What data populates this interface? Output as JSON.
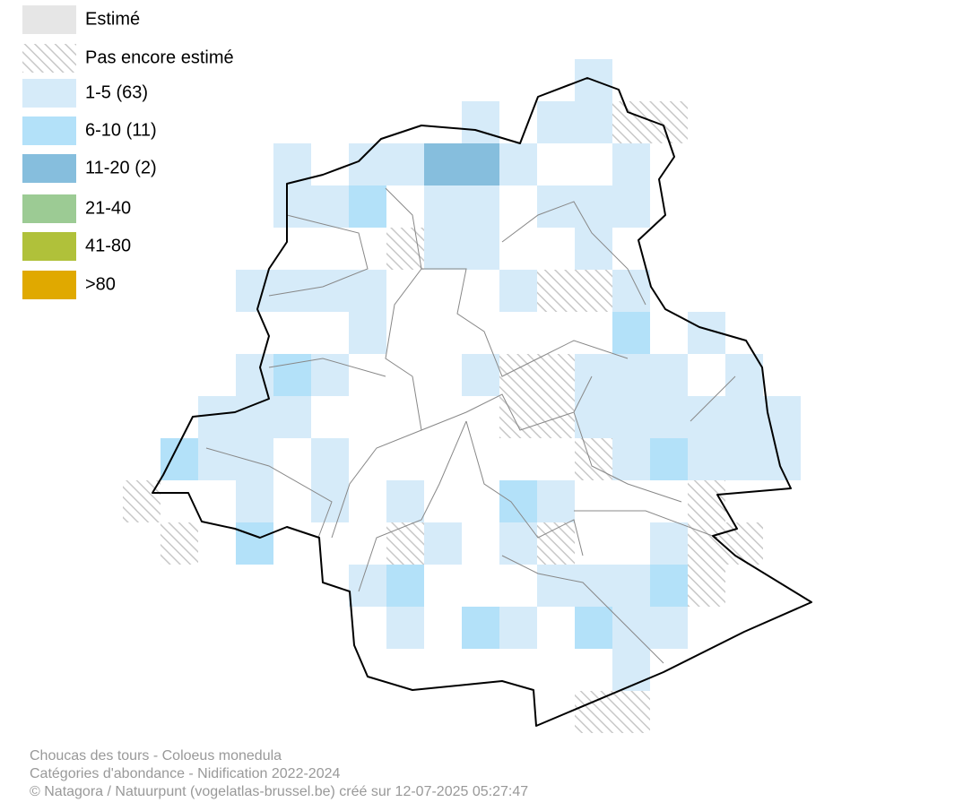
{
  "legend": [
    {
      "label": "Estimé",
      "color": "#e6e6e6"
    },
    {
      "label": "Pas encore estimé"
    },
    {
      "label": "1-5 (63)",
      "color": "#d6ebf9"
    },
    {
      "label": "6-10 (11)",
      "color": "#b3e1f9"
    },
    {
      "label": "11-20 (2)",
      "color": "#86bedd"
    },
    {
      "label": "21-40",
      "color": "#9ccb94"
    },
    {
      "label": "41-80",
      "color": "#b0c13a"
    },
    {
      "label": ">80",
      "color": "#e0a900"
    }
  ],
  "footer": [
    "Choucas des tours - Coloeus monedula",
    "Catégories d'abondance - Nidification 2022-2024",
    "© Natagora / Natuurpunt (vogelatlas-brussel.be) créé sur 12-07-2025 05:27:47"
  ]
}
